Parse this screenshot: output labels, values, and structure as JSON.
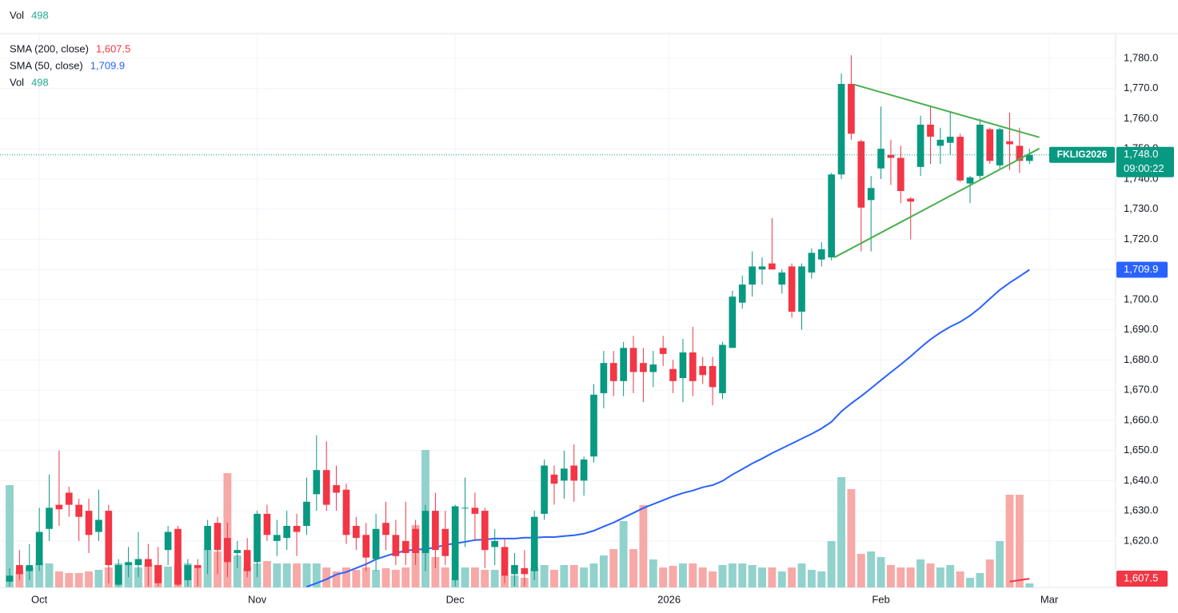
{
  "chart_data": {
    "type": "candlestick",
    "symbol": "FKLIG2026",
    "xlim": [
      -0.97,
      111.7
    ],
    "ylim": [
      1604.6,
      1788.2
    ],
    "vol_ylim": [
      0,
      69300
    ],
    "up_color": "#089981",
    "down_color": "#f23645",
    "grid": true,
    "yticks": [
      {
        "value": 1620,
        "label": "1,620.0"
      },
      {
        "value": 1630,
        "label": "1,630.0"
      },
      {
        "value": 1640,
        "label": "1,640.0"
      },
      {
        "value": 1650,
        "label": "1,650.0"
      },
      {
        "value": 1660,
        "label": "1,660.0"
      },
      {
        "value": 1670,
        "label": "1,670.0"
      },
      {
        "value": 1680,
        "label": "1,680.0"
      },
      {
        "value": 1690,
        "label": "1,690.0"
      },
      {
        "value": 1700,
        "label": "1,700.0"
      },
      {
        "value": 1710,
        "label": "1,710.0"
      },
      {
        "value": 1720,
        "label": "1,720.0"
      },
      {
        "value": 1730,
        "label": "1,730.0"
      },
      {
        "value": 1740,
        "label": "1,740.0"
      },
      {
        "value": 1750,
        "label": "1,750.0"
      },
      {
        "value": 1760,
        "label": "1,760.0"
      },
      {
        "value": 1770,
        "label": "1,770.0"
      },
      {
        "value": 1780,
        "label": "1,780.0"
      }
    ],
    "xticks": [
      {
        "value": 3,
        "label": "Oct"
      },
      {
        "value": 25,
        "label": "Nov"
      },
      {
        "value": 45,
        "label": "Dec"
      },
      {
        "value": 66.6,
        "label": "2026"
      },
      {
        "value": 88,
        "label": "Feb"
      },
      {
        "value": 105,
        "label": "Mar"
      }
    ],
    "ohlc": [
      [
        1606.5,
        1611,
        1605,
        1608.5
      ],
      [
        1612,
        1617,
        1607,
        1609
      ],
      [
        1610,
        1619,
        1607,
        1612
      ],
      [
        1612,
        1631,
        1610,
        1623
      ],
      [
        1624,
        1642,
        1620,
        1631
      ],
      [
        1632,
        1650,
        1625,
        1630.5
      ],
      [
        1636,
        1638,
        1628,
        1632
      ],
      [
        1632,
        1634,
        1620,
        1628
      ],
      [
        1630,
        1634,
        1616,
        1622
      ],
      [
        1623,
        1637,
        1620,
        1627
      ],
      [
        1630,
        1632,
        1606,
        1612
      ],
      [
        1605.5,
        1614,
        1605,
        1612
      ],
      [
        1612,
        1618,
        1608,
        1613
      ],
      [
        1612,
        1623,
        1608,
        1614
      ],
      [
        1614,
        1619,
        1605,
        1611.5
      ],
      [
        1612,
        1618,
        1605,
        1606
      ],
      [
        1617,
        1625,
        1612,
        1623
      ],
      [
        1624,
        1625,
        1605,
        1605.5
      ],
      [
        1607,
        1614,
        1605,
        1612
      ],
      [
        1612,
        1614,
        1605,
        1611
      ],
      [
        1617,
        1627,
        1609,
        1625
      ],
      [
        1626,
        1628,
        1609,
        1617
      ],
      [
        1621,
        1626,
        1608,
        1613
      ],
      [
        1616,
        1620,
        1611,
        1617
      ],
      [
        1617,
        1621,
        1608,
        1610
      ],
      [
        1613,
        1630,
        1608,
        1629
      ],
      [
        1629,
        1632,
        1620,
        1622
      ],
      [
        1620,
        1627,
        1615,
        1622
      ],
      [
        1621,
        1630,
        1617,
        1625
      ],
      [
        1625,
        1629,
        1615,
        1623
      ],
      [
        1625,
        1641,
        1622,
        1633
      ],
      [
        1635.5,
        1655,
        1630,
        1643.5
      ],
      [
        1643.5,
        1653,
        1630,
        1632
      ],
      [
        1638.5,
        1645,
        1630,
        1636
      ],
      [
        1637,
        1639,
        1619,
        1622
      ],
      [
        1625,
        1628,
        1617,
        1621
      ],
      [
        1622,
        1626,
        1610,
        1614.5
      ],
      [
        1614,
        1629,
        1610,
        1624
      ],
      [
        1626,
        1633,
        1617,
        1622
      ],
      [
        1622,
        1627,
        1612,
        1615
      ],
      [
        1620,
        1633,
        1612,
        1616
      ],
      [
        1624,
        1627,
        1612,
        1616
      ],
      [
        1616,
        1632,
        1610,
        1630
      ],
      [
        1630,
        1636,
        1611,
        1617
      ],
      [
        1624,
        1630,
        1612,
        1615
      ],
      [
        1607,
        1632,
        1605,
        1631.5
      ],
      [
        1631,
        1641,
        1618,
        1631
      ],
      [
        1631,
        1636,
        1620,
        1629
      ],
      [
        1630,
        1631,
        1611,
        1617
      ],
      [
        1618,
        1624,
        1612,
        1620
      ],
      [
        1618,
        1621,
        1606,
        1608.5
      ],
      [
        1609,
        1616,
        1605,
        1612
      ],
      [
        1611,
        1617,
        1605,
        1609
      ],
      [
        1610,
        1630,
        1607,
        1628
      ],
      [
        1629,
        1647,
        1627,
        1645
      ],
      [
        1642,
        1645,
        1632,
        1639
      ],
      [
        1640,
        1650,
        1634,
        1644
      ],
      [
        1645,
        1652,
        1633,
        1640
      ],
      [
        1640,
        1648,
        1635,
        1647
      ],
      [
        1648,
        1672,
        1646,
        1668.5
      ],
      [
        1669,
        1683,
        1664,
        1679
      ],
      [
        1679,
        1683,
        1668,
        1673
      ],
      [
        1673,
        1686,
        1668,
        1684
      ],
      [
        1684,
        1688,
        1669,
        1676
      ],
      [
        1679,
        1684,
        1666,
        1676
      ],
      [
        1676,
        1683,
        1671,
        1678.5
      ],
      [
        1684,
        1688,
        1678,
        1682
      ],
      [
        1677,
        1680,
        1669,
        1673
      ],
      [
        1674,
        1687,
        1666,
        1682.5
      ],
      [
        1682.5,
        1691,
        1668,
        1673
      ],
      [
        1678,
        1681,
        1672,
        1675
      ],
      [
        1678,
        1681,
        1665,
        1671
      ],
      [
        1669,
        1686,
        1667,
        1685
      ],
      [
        1684,
        1703,
        1684,
        1701
      ],
      [
        1699,
        1708,
        1697,
        1705
      ],
      [
        1705,
        1716,
        1701,
        1711
      ],
      [
        1710,
        1714,
        1705,
        1711
      ],
      [
        1712,
        1727,
        1710,
        1710
      ],
      [
        1705,
        1710,
        1702,
        1709
      ],
      [
        1711,
        1712,
        1694,
        1696
      ],
      [
        1696,
        1712,
        1690,
        1711
      ],
      [
        1709,
        1717,
        1707,
        1715.5
      ],
      [
        1713.3,
        1719,
        1711,
        1716.7
      ],
      [
        1714,
        1742,
        1713,
        1741.5
      ],
      [
        1741.5,
        1775,
        1740,
        1771.5
      ],
      [
        1771.5,
        1781,
        1753,
        1755
      ],
      [
        1752.5,
        1753,
        1716,
        1730.5
      ],
      [
        1733,
        1741,
        1716,
        1737
      ],
      [
        1743.5,
        1764,
        1740,
        1750
      ],
      [
        1748,
        1753,
        1738,
        1747
      ],
      [
        1747,
        1751,
        1732,
        1736
      ],
      [
        1733.5,
        1734,
        1720,
        1732.5
      ],
      [
        1744,
        1761,
        1741,
        1758
      ],
      [
        1758,
        1764,
        1745,
        1754
      ],
      [
        1751,
        1757,
        1745,
        1753
      ],
      [
        1752,
        1762,
        1748,
        1754
      ],
      [
        1754,
        1755,
        1739,
        1739.5
      ],
      [
        1738.5,
        1741,
        1732,
        1740.5
      ],
      [
        1741,
        1760,
        1740,
        1758
      ],
      [
        1756.5,
        1757,
        1745,
        1746
      ],
      [
        1744.5,
        1757,
        1743,
        1756.5
      ],
      [
        1752.5,
        1762,
        1743,
        1751.5
      ],
      [
        1751,
        1757,
        1742,
        1746
      ],
      [
        1746,
        1750,
        1745,
        1748
      ]
    ],
    "volume": {
      "name": "Vol",
      "last_value_label": "498",
      "up_color": "#92d2cc",
      "down_color": "#f7a9a7",
      "values": [
        12800,
        2000,
        2500,
        3000,
        3000,
        2000,
        1800,
        1800,
        2000,
        2200,
        2500,
        3000,
        3000,
        2500,
        3000,
        2800,
        2600,
        2800,
        3000,
        2400,
        4800,
        4500,
        14300,
        4000,
        2500,
        3000,
        3300,
        3000,
        3000,
        3000,
        3000,
        3000,
        2500,
        2000,
        2500,
        2200,
        2500,
        2200,
        2400,
        2200,
        2500,
        7800,
        17200,
        3800,
        2500,
        1000,
        2500,
        2500,
        2200,
        2200,
        1500,
        1500,
        1200,
        2500,
        2800,
        2200,
        2800,
        2800,
        2500,
        3000,
        4000,
        4800,
        8300,
        4800,
        10300,
        3500,
        2500,
        2700,
        3000,
        3000,
        2500,
        2000,
        2800,
        3000,
        3000,
        2800,
        2500,
        2500,
        2000,
        2500,
        3000,
        2200,
        2000,
        5800,
        13800,
        12300,
        4200,
        4500,
        3800,
        2800,
        2500,
        2500,
        3500,
        3000,
        2500,
        2800,
        2000,
        1200,
        1800,
        3500,
        5800,
        11600,
        11600,
        498
      ]
    },
    "series": [
      {
        "name": "SMA (200, close)",
        "color": "#f23645",
        "last_value_label": "1,607.5",
        "values": [
          null,
          null,
          null,
          null,
          null,
          null,
          null,
          null,
          null,
          null,
          null,
          null,
          null,
          null,
          null,
          null,
          null,
          null,
          null,
          null,
          null,
          null,
          null,
          null,
          null,
          null,
          null,
          null,
          null,
          null,
          null,
          null,
          null,
          null,
          null,
          null,
          null,
          null,
          null,
          null,
          null,
          null,
          null,
          null,
          null,
          null,
          null,
          null,
          null,
          null,
          null,
          null,
          null,
          null,
          null,
          null,
          null,
          null,
          null,
          null,
          null,
          null,
          null,
          null,
          null,
          null,
          null,
          null,
          null,
          null,
          null,
          null,
          null,
          null,
          null,
          null,
          null,
          null,
          null,
          null,
          null,
          null,
          null,
          null,
          null,
          null,
          null,
          null,
          null,
          null,
          null,
          null,
          null,
          null,
          null,
          null,
          null,
          null,
          null,
          null,
          null,
          1606.5,
          1607.0,
          1607.5
        ]
      },
      {
        "name": "SMA (50, close)",
        "color": "#2962ff",
        "last_value_label": "1,709.9",
        "values": [
          null,
          null,
          null,
          null,
          null,
          null,
          null,
          null,
          null,
          null,
          null,
          null,
          null,
          null,
          null,
          null,
          null,
          null,
          null,
          null,
          null,
          null,
          null,
          null,
          null,
          null,
          null,
          null,
          null,
          null,
          1604.8,
          1606.0,
          1607.3,
          1608.9,
          1609.7,
          1611.0,
          1612.3,
          1613.9,
          1615.0,
          1616.0,
          1616.8,
          1617.1,
          1617.3,
          1617.9,
          1618.7,
          1619.2,
          1619.7,
          1620.3,
          1620.5,
          1620.8,
          1620.8,
          1620.8,
          1621.1,
          1621.1,
          1621.3,
          1621.3,
          1621.6,
          1621.9,
          1622.4,
          1623.4,
          1624.8,
          1626.1,
          1627.7,
          1629.3,
          1630.9,
          1632.2,
          1633.5,
          1634.8,
          1635.9,
          1636.7,
          1637.8,
          1638.5,
          1639.9,
          1642.0,
          1643.8,
          1645.7,
          1647.3,
          1649.1,
          1650.7,
          1652.3,
          1653.9,
          1655.5,
          1657.3,
          1659.5,
          1662.9,
          1665.6,
          1668.0,
          1670.6,
          1673.3,
          1675.9,
          1678.5,
          1681.2,
          1684.1,
          1686.8,
          1689.1,
          1691.0,
          1692.6,
          1694.7,
          1697.3,
          1700.3,
          1703.2,
          1705.6,
          1707.7,
          1709.9
        ]
      }
    ],
    "trendlines": [
      {
        "color": "#4caf50",
        "x": [
          85.3,
          104
        ],
        "y": [
          1771.3,
          1753.8
        ]
      },
      {
        "color": "#4caf50",
        "x": [
          83.3,
          104
        ],
        "y": [
          1714,
          1750.1
        ]
      }
    ],
    "last_price": {
      "value": 1748,
      "label": "1,748.0",
      "countdown": "09:00:22"
    }
  }
}
